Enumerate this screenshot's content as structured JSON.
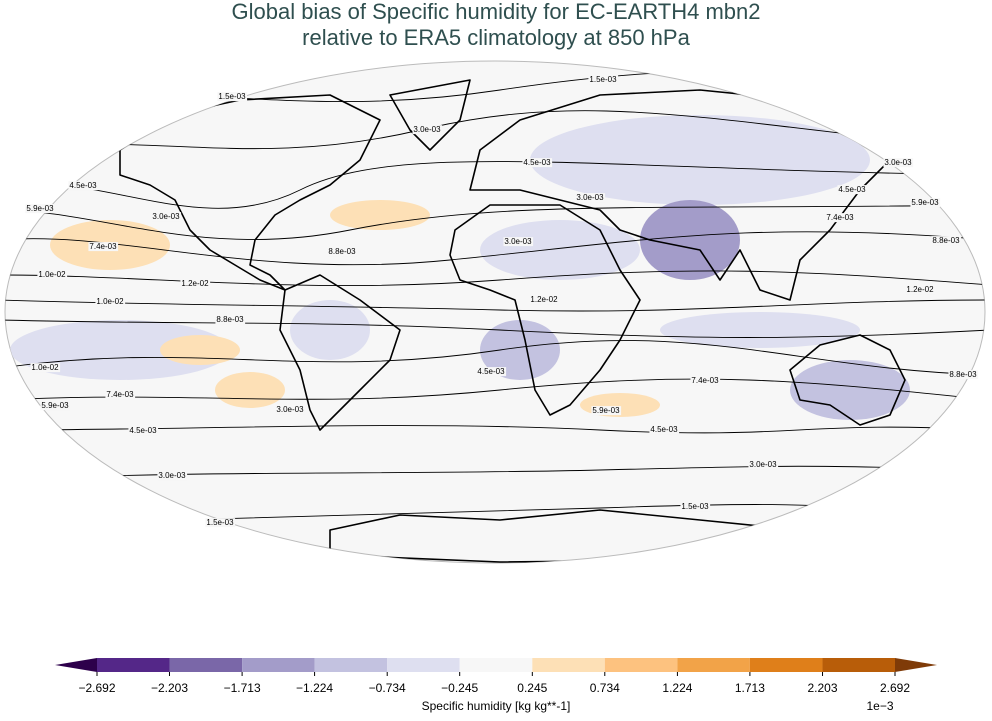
{
  "title": [
    "Global bias of Specific humidity for EC-EARTH4 mbn2",
    "relative to ERA5 climatology at 850 hPa"
  ],
  "contour_labels": [
    "1.5e-03",
    "1.5e-03",
    "3.0e-03",
    "4.5e-03",
    "3.0e-03",
    "3.0e-03",
    "4.5e-03",
    "4.5e-03",
    "5.9e-03",
    "5.9e-03",
    "3.0e-03",
    "7.4e-03",
    "7.4e-03",
    "8.8e-03",
    "8.8e-03",
    "3.0e-03",
    "1.0e-02",
    "1.2e-02",
    "1.2e-02",
    "1.0e-02",
    "1.2e-02",
    "8.8e-03",
    "1.0e-02",
    "8.8e-03",
    "7.4e-03",
    "7.4e-03",
    "5.9e-03",
    "5.9e-03",
    "4.5e-03",
    "4.5e-03",
    "3.0e-03",
    "3.0e-03",
    "1.5e-03",
    "1.5e-03",
    "4.5e-03",
    "3.0e-03"
  ],
  "colorbar": {
    "ticks": [
      {
        "value": -2.692,
        "label": "−2.692"
      },
      {
        "value": -2.203,
        "label": "−2.203"
      },
      {
        "value": -1.713,
        "label": "−1.713"
      },
      {
        "value": -1.224,
        "label": "−1.224"
      },
      {
        "value": -0.734,
        "label": "−0.734"
      },
      {
        "value": -0.245,
        "label": "−0.245"
      },
      0.245,
      0.734,
      1.224,
      1.713,
      2.203,
      2.692
    ],
    "colors": [
      "#2d004b",
      "#542788",
      "#7a67a8",
      "#a39cc9",
      "#c3c2e0",
      "#dedff0",
      "#f7f7f7",
      "#fde0b6",
      "#fdc27f",
      "#f2a348",
      "#df7f1a",
      "#b85d09",
      "#7f3b08"
    ],
    "label": "Specific humidity [kg kg**-1]",
    "scale": "1e−3"
  }
}
